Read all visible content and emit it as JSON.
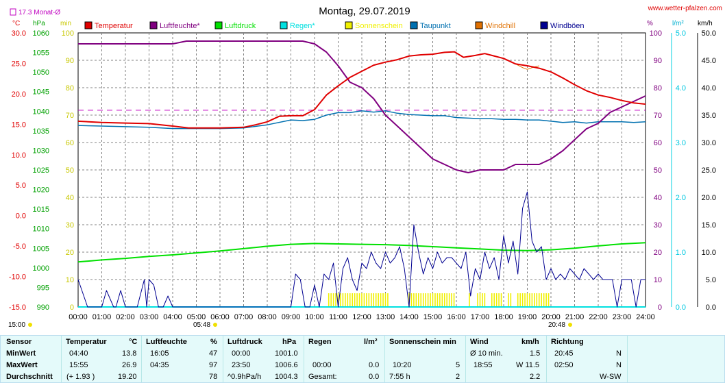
{
  "chart_data": {
    "type": "line",
    "title": "Montag, 29.07.2019",
    "source": "www.wetter-pfalzen.com",
    "monthly_avg": "17.3 Monat-Ø",
    "unit_labels": {
      "temp": "°C",
      "pressure": "hPa",
      "minutes": "min",
      "percent": "%",
      "rain": "l/m²",
      "wind": "km/h"
    },
    "legend": [
      {
        "name": "Temperatur",
        "color": "#e00000"
      },
      {
        "name": "Luftfeuchte*",
        "color": "#800080"
      },
      {
        "name": "Luftdruck",
        "color": "#00e000"
      },
      {
        "name": "Regen*",
        "color": "#00e0e0"
      },
      {
        "name": "Sonnenschein",
        "color": "#f0f000"
      },
      {
        "name": "Taupunkt",
        "color": "#0070b0"
      },
      {
        "name": "Windchill",
        "color": "#e07000"
      },
      {
        "name": "Windböen",
        "color": "#000090"
      }
    ],
    "x_ticks": [
      "00:00",
      "01:00",
      "02:00",
      "03:00",
      "04:00",
      "05:00",
      "06:00",
      "07:00",
      "08:00",
      "09:00",
      "10:00",
      "11:00",
      "12:00",
      "13:00",
      "14:00",
      "15:00",
      "16:00",
      "17:00",
      "18:00",
      "19:00",
      "20:00",
      "21:00",
      "22:00",
      "23:00",
      "24:00"
    ],
    "temp_ticks": [
      "30.0",
      "25.0",
      "20.0",
      "15.0",
      "10.0",
      "5.0",
      "0.0",
      "-5.0",
      "-10.0",
      "-15.0"
    ],
    "pressure_ticks": [
      "1060",
      "1055",
      "1050",
      "1045",
      "1040",
      "1035",
      "1030",
      "1025",
      "1020",
      "1015",
      "1010",
      "1005",
      "1000",
      "995",
      "990"
    ],
    "min_ticks": [
      "100",
      "90",
      "80",
      "70",
      "60",
      "50",
      "40",
      "30",
      "20",
      "10",
      "0"
    ],
    "percent_ticks": [
      "100",
      "90",
      "80",
      "70",
      "60",
      "50",
      "40",
      "30",
      "20",
      "10",
      "0"
    ],
    "rain_ticks": [
      "5.0",
      "4.0",
      "3.0",
      "2.0",
      "1.0",
      "0.0"
    ],
    "wind_ticks": [
      "50.0",
      "45.0",
      "40.0",
      "35.0",
      "30.0",
      "25.0",
      "20.0",
      "15.0",
      "10.0",
      "5.0",
      "0.0"
    ],
    "ylim_temp": [
      -15,
      30
    ],
    "ylim_pressure": [
      990,
      1060
    ],
    "ylim_percent": [
      0,
      100
    ],
    "ylim_rain": [
      0,
      5
    ],
    "ylim_wind": [
      0,
      50
    ],
    "monthly_avg_value": 17.3,
    "sunrise": "05:48",
    "sunset": "20:48",
    "daylight_start": "15:00",
    "series": [
      {
        "name": "Temperatur",
        "x": [
          0,
          1,
          2,
          3,
          4,
          4.67,
          5,
          6,
          7,
          7.5,
          8,
          8.5,
          9,
          9.5,
          10,
          10.5,
          11,
          11.5,
          12,
          12.5,
          13,
          13.5,
          14,
          14.5,
          15,
          15.5,
          15.92,
          16.3,
          16.8,
          17.2,
          17.5,
          18,
          18.5,
          19,
          19.5,
          20,
          20.5,
          21,
          21.5,
          22,
          22.5,
          23,
          23.5,
          24
        ],
        "y": [
          15.5,
          15.3,
          15.2,
          15.1,
          14.7,
          14.4,
          14.4,
          14.4,
          14.5,
          14.9,
          15.4,
          16.3,
          16.4,
          16.4,
          17.4,
          19.8,
          21.3,
          22.7,
          23.7,
          24.7,
          25.2,
          25.6,
          26.2,
          26.4,
          26.5,
          26.8,
          26.9,
          26.0,
          26.3,
          26.6,
          26.3,
          25.8,
          24.9,
          24.6,
          24.2,
          23.6,
          22.6,
          21.5,
          20.5,
          19.8,
          19.4,
          18.9,
          18.5,
          18.3
        ]
      },
      {
        "name": "Luftfeuchte*",
        "x": [
          0,
          1,
          2,
          3,
          4,
          4.58,
          5,
          6,
          7,
          8,
          9,
          9.5,
          10,
          10.5,
          11,
          11.5,
          12,
          12.5,
          13,
          13.5,
          14,
          14.5,
          15,
          15.5,
          16,
          16.5,
          17,
          17.5,
          18,
          18.5,
          19,
          19.5,
          20,
          20.5,
          21,
          21.5,
          22,
          22.5,
          23,
          23.5,
          24
        ],
        "y": [
          96,
          96,
          96,
          96,
          96,
          97,
          97,
          97,
          97,
          97,
          97,
          97,
          96,
          93,
          88,
          82,
          80,
          76,
          70,
          66,
          62,
          58,
          54,
          52,
          50,
          49,
          50,
          50,
          50,
          52,
          52,
          52,
          54,
          57,
          61,
          65,
          67,
          71,
          73,
          75,
          77
        ]
      },
      {
        "name": "Luftdruck",
        "x": [
          0,
          1,
          2,
          3,
          4,
          5,
          6,
          7,
          8,
          9,
          10,
          11,
          12,
          13,
          14,
          15,
          16,
          17,
          18,
          19,
          20,
          21,
          22,
          23,
          24
        ],
        "y": [
          1001.5,
          1002.0,
          1002.4,
          1002.9,
          1003.3,
          1003.8,
          1004.3,
          1004.9,
          1005.5,
          1006.0,
          1006.2,
          1006.1,
          1006.0,
          1005.9,
          1005.7,
          1005.4,
          1005.1,
          1004.8,
          1004.5,
          1004.4,
          1004.6,
          1005.0,
          1005.6,
          1006.1,
          1006.4
        ]
      },
      {
        "name": "Regen*",
        "x": [
          0,
          24
        ],
        "y": [
          0,
          0
        ]
      },
      {
        "name": "Taupunkt",
        "x": [
          0,
          1,
          2,
          3,
          4,
          5,
          6,
          7,
          8,
          9,
          9.5,
          10,
          10.5,
          11,
          11.5,
          12,
          12.5,
          13,
          13.5,
          14,
          14.5,
          15,
          15.5,
          16,
          16.5,
          17,
          17.5,
          18,
          18.5,
          19,
          19.5,
          20,
          20.5,
          21,
          21.5,
          22,
          22.5,
          23,
          23.5,
          24
        ],
        "y": [
          14.8,
          14.7,
          14.6,
          14.5,
          14.3,
          14.3,
          14.3,
          14.4,
          14.9,
          15.7,
          15.6,
          15.8,
          16.5,
          16.9,
          16.9,
          17.2,
          17.0,
          17.2,
          16.8,
          16.6,
          16.5,
          16.4,
          16.4,
          16.1,
          16.0,
          15.9,
          15.9,
          15.8,
          15.8,
          15.7,
          15.7,
          15.5,
          15.3,
          15.4,
          15.2,
          15.4,
          15.4,
          15.4,
          15.3,
          15.4
        ]
      },
      {
        "name": "Windchill",
        "x": [
          18.5,
          18.8,
          19.0,
          19.2,
          19.5
        ],
        "y": [
          24.9,
          24.3,
          24.0,
          24.3,
          24.6
        ]
      },
      {
        "name": "Windböen",
        "x": [
          0,
          0.4,
          0.5,
          1.0,
          1.2,
          1.5,
          1.6,
          1.8,
          2.0,
          2.3,
          2.5,
          2.8,
          2.9,
          3.0,
          3.2,
          3.4,
          3.6,
          3.8,
          4.0,
          9.0,
          9.2,
          9.4,
          9.6,
          9.8,
          10.0,
          10.2,
          10.4,
          10.6,
          10.8,
          11.0,
          11.2,
          11.4,
          11.6,
          11.8,
          12.0,
          12.2,
          12.4,
          12.6,
          12.8,
          13.0,
          13.2,
          13.4,
          13.6,
          13.8,
          14.0,
          14.2,
          14.4,
          14.6,
          14.8,
          15.0,
          15.2,
          15.4,
          15.6,
          15.8,
          16.0,
          16.2,
          16.4,
          16.6,
          16.8,
          17.0,
          17.2,
          17.4,
          17.6,
          17.8,
          18.0,
          18.2,
          18.4,
          18.6,
          18.8,
          19.0,
          19.2,
          19.4,
          19.6,
          19.8,
          20.0,
          20.2,
          20.4,
          20.6,
          20.8,
          21.0,
          21.2,
          21.4,
          21.6,
          21.8,
          22.0,
          22.2,
          22.4,
          22.6,
          22.8,
          23.0,
          23.2,
          23.4,
          23.6,
          23.8,
          24.0
        ],
        "y": [
          5,
          0,
          0,
          0,
          3,
          0,
          0,
          3,
          0,
          0,
          0,
          5,
          0,
          5,
          4,
          0,
          0,
          2,
          0,
          0,
          6,
          5,
          0,
          0,
          4,
          0,
          6,
          5,
          8,
          0,
          7,
          9,
          5,
          3,
          8,
          7,
          10,
          8,
          7,
          10,
          8,
          9,
          11,
          7,
          0,
          15,
          10,
          6,
          9,
          7,
          10,
          8,
          9,
          9,
          8,
          7,
          10,
          2,
          7,
          5,
          10,
          7,
          9,
          5,
          13,
          8,
          12,
          6,
          18,
          21,
          12,
          10,
          11,
          5,
          7,
          5,
          6,
          5,
          7,
          6,
          5,
          7,
          6,
          5,
          6,
          5,
          5,
          5,
          0,
          5,
          5,
          5,
          0,
          5,
          5
        ]
      }
    ],
    "sunshine_periods": [
      [
        "10.60",
        "13.10"
      ],
      [
        "14.00",
        "15.95"
      ],
      [
        "16.55",
        "16.65"
      ],
      [
        "16.90",
        "17.30"
      ],
      [
        "17.50",
        "17.95"
      ],
      [
        "18.20",
        "18.35"
      ],
      [
        "18.60",
        "20.00"
      ]
    ]
  },
  "stats": {
    "headers": {
      "sensor": "Sensor",
      "temp": "Temperatur",
      "temp_unit": "°C",
      "hum": "Luftfeuchte",
      "hum_unit": "%",
      "press": "Luftdruck",
      "press_unit": "hPa",
      "rain": "Regen",
      "rain_unit": "l/m²",
      "sun": "Sonnenschein min",
      "wind": "Wind",
      "wind_unit": "km/h",
      "dir": "Richtung"
    },
    "rows": [
      {
        "label": "MinWert",
        "t_time": "04:40",
        "t_val": "13.8",
        "h_time": "16:05",
        "h_val": "47",
        "p_time": "00:00",
        "p_val": "1001.0",
        "r_time": "",
        "r_val": "",
        "s_time": "",
        "s_val": "",
        "w_time": "Ø 10 min.",
        "w_val": "1.5",
        "d_time": "20:45",
        "d_val": "N"
      },
      {
        "label": "MaxWert",
        "t_time": "15:55",
        "t_val": "26.9",
        "h_time": "04:35",
        "h_val": "97",
        "p_time": "23:50",
        "p_val": "1006.6",
        "r_time": "00:00",
        "r_val": "0.0",
        "s_time": "10:20",
        "s_val": "5",
        "w_time": "18:55",
        "w_val": "W 11.5",
        "d_time": "02:50",
        "d_val": "N"
      },
      {
        "label": "Durchschnitt",
        "t_time": "(+ 1.93 )",
        "t_val": "19.20",
        "h_time": "",
        "h_val": "78",
        "p_time": "^0.9hPa/h",
        "p_val": "1004.3",
        "r_time": "Gesamt:",
        "r_val": "0.0",
        "s_time": "7:55 h",
        "s_val": "2",
        "w_time": "",
        "w_val": "2.2",
        "d_time": "",
        "d_val": "W-SW"
      }
    ]
  }
}
